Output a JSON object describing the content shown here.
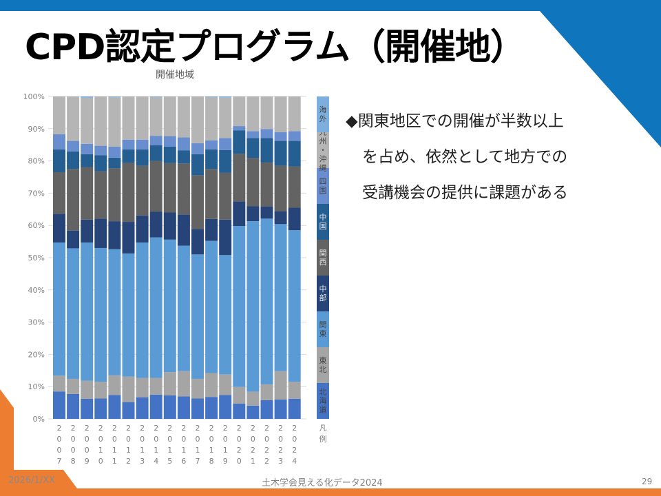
{
  "slide": {
    "title": "CPD認定プログラム（開催地）",
    "bullet_lines": [
      "◆関東地区での開催が半数以上",
      "を占め、依然として地方での",
      "受講機会の提供に課題がある"
    ],
    "footer_date": "2026/1/XX",
    "footer_source": "土木学会見える化データ2024",
    "page_number": "29",
    "colors": {
      "top_bar": "#0f75bc",
      "accent_orange": "#ed7d31"
    }
  },
  "chart_data": {
    "type": "bar",
    "stacked": "percent",
    "title": "開催地域",
    "xlabel": "",
    "ylabel": "",
    "ylim": [
      0,
      100
    ],
    "yticks": [
      "0%",
      "10%",
      "20%",
      "30%",
      "40%",
      "50%",
      "60%",
      "70%",
      "80%",
      "90%",
      "100%"
    ],
    "grid": true,
    "legend_title": "凡例",
    "legend_position": "right",
    "categories": [
      "2007",
      "2008",
      "2009",
      "2010",
      "2011",
      "2012",
      "2013",
      "2014",
      "2015",
      "2016",
      "2017",
      "2018",
      "2019",
      "2020",
      "2021",
      "2022",
      "2023",
      "2024"
    ],
    "series": [
      {
        "name": "北海道",
        "color": "#4472c4",
        "values": [
          8.5,
          7.7,
          6.2,
          6.3,
          7.4,
          5.2,
          6.7,
          7.5,
          7.3,
          7.0,
          6.3,
          6.8,
          7.4,
          4.7,
          4.1,
          5.8,
          6.0,
          6.2
        ]
      },
      {
        "name": "東北",
        "color": "#a5a5a5",
        "values": [
          4.9,
          4.7,
          5.6,
          5.2,
          6.1,
          7.9,
          6.0,
          5.2,
          7.2,
          7.8,
          6.1,
          7.4,
          6.4,
          5.2,
          4.3,
          4.9,
          8.8,
          5.3
        ]
      },
      {
        "name": "関東",
        "color": "#5b9bd5",
        "values": [
          41.3,
          40.5,
          42.9,
          41.5,
          39.1,
          38.2,
          42.0,
          43.6,
          41.1,
          38.9,
          38.6,
          41.0,
          37.0,
          49.9,
          52.9,
          51.4,
          45.6,
          47.0
        ]
      },
      {
        "name": "中部",
        "color": "#264478",
        "values": [
          8.9,
          5.5,
          7.1,
          9.1,
          8.7,
          9.8,
          8.4,
          8.0,
          8.4,
          9.7,
          7.9,
          6.8,
          11.0,
          7.6,
          4.7,
          3.8,
          4.0,
          7.0
        ]
      },
      {
        "name": "関西",
        "color": "#636363",
        "values": [
          12.9,
          19.1,
          16.3,
          14.7,
          16.4,
          18.3,
          15.4,
          15.7,
          15.3,
          15.8,
          16.6,
          15.5,
          14.5,
          14.8,
          14.9,
          13.6,
          14.1,
          12.8
        ]
      },
      {
        "name": "中国",
        "color": "#255e91",
        "values": [
          7.1,
          5.4,
          4.0,
          5.0,
          3.3,
          4.2,
          5.1,
          4.9,
          5.1,
          4.1,
          6.6,
          6.1,
          7.1,
          7.3,
          6.2,
          7.6,
          7.7,
          7.9
        ]
      },
      {
        "name": "四国",
        "color": "#698ed0",
        "values": [
          4.7,
          3.3,
          3.2,
          2.9,
          3.4,
          3.0,
          3.0,
          2.9,
          3.3,
          4.0,
          3.4,
          2.8,
          3.7,
          1.3,
          2.1,
          2.8,
          2.7,
          3.0
        ]
      },
      {
        "name": "九州・沖縄",
        "color": "#b5b5b5",
        "values": [
          11.7,
          13.8,
          14.3,
          15.3,
          15.4,
          13.4,
          13.4,
          12.0,
          12.3,
          12.7,
          14.5,
          13.4,
          12.6,
          9.2,
          10.8,
          10.1,
          11.1,
          10.8
        ]
      },
      {
        "name": "海外",
        "color": "#7cafdd",
        "values": [
          0,
          0,
          0.4,
          0,
          0.2,
          0,
          0,
          0.2,
          0,
          0,
          0,
          0.2,
          0.3,
          0,
          0,
          0,
          0,
          0
        ]
      }
    ]
  }
}
